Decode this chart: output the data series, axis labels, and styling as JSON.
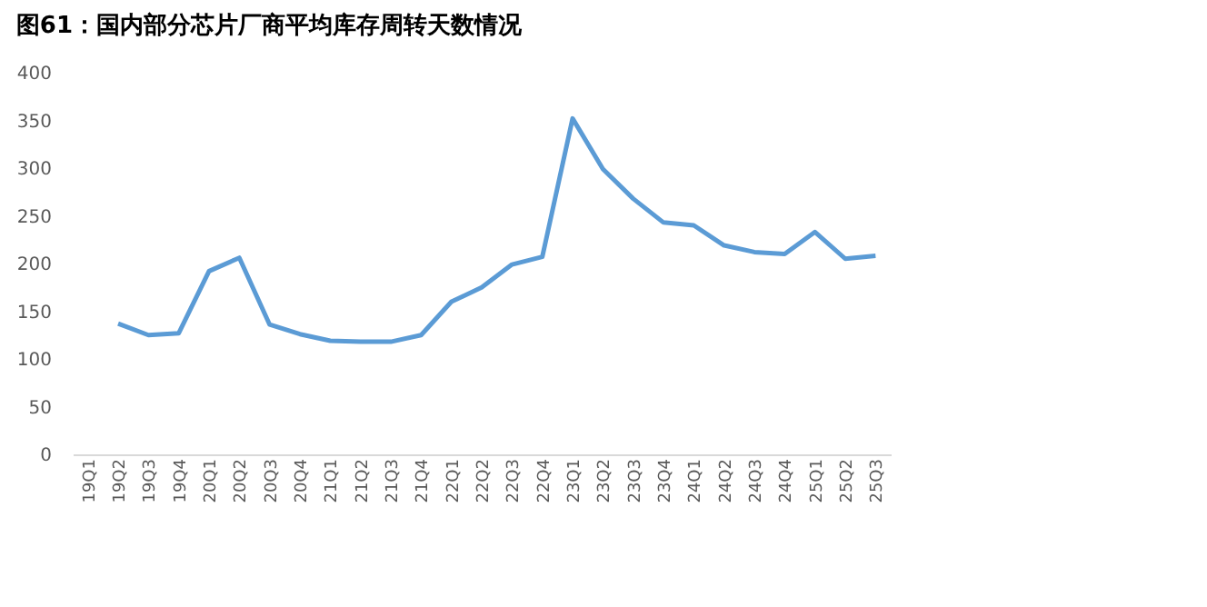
{
  "chart_data": {
    "type": "line",
    "title": "图61：国内部分芯片厂商平均库存周转天数情况",
    "categories": [
      "19Q1",
      "19Q2",
      "19Q3",
      "19Q4",
      "20Q1",
      "20Q2",
      "20Q3",
      "20Q4",
      "21Q1",
      "21Q2",
      "21Q3",
      "21Q4",
      "22Q1",
      "22Q2",
      "22Q3",
      "22Q4",
      "23Q1",
      "23Q2",
      "23Q3",
      "23Q4",
      "24Q1",
      "24Q2",
      "24Q3",
      "24Q4",
      "25Q1",
      "25Q2",
      "25Q3"
    ],
    "series": [
      {
        "color": "#5b9bd5",
        "values": [
          null,
          137,
          125,
          127,
          192,
          206,
          136,
          126,
          119,
          118,
          118,
          125,
          160,
          175,
          199,
          207,
          352,
          299,
          268,
          243,
          240,
          219,
          212,
          210,
          233,
          205,
          208
        ]
      }
    ],
    "ylim": [
      0,
      400
    ],
    "yticks": [
      0,
      50,
      100,
      150,
      200,
      250,
      300,
      350,
      400
    ],
    "grid": false,
    "legend": false,
    "marker": "none",
    "line_style": "solid"
  }
}
